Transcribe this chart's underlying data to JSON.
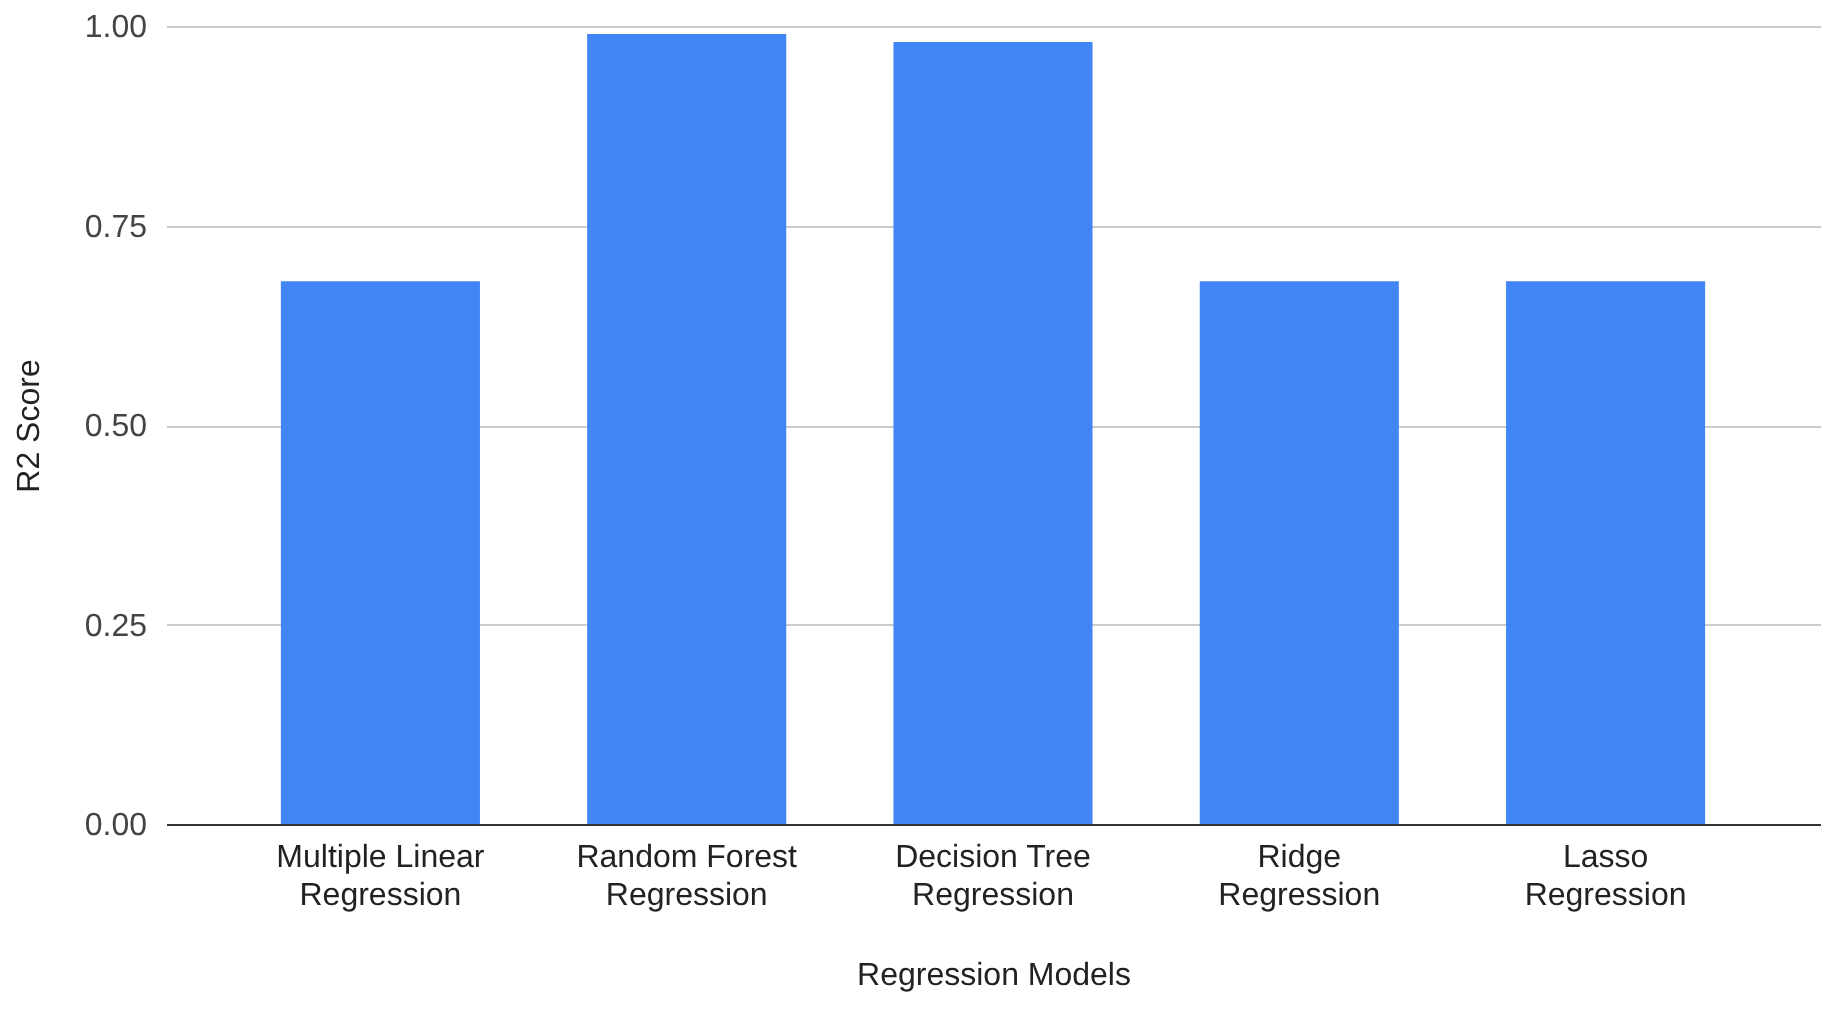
{
  "chart_data": {
    "type": "bar",
    "xlabel": "Regression Models",
    "ylabel": "R2 Score",
    "categories": [
      "Multiple Linear Regression",
      "Random Forest Regression",
      "Decision Tree Regression",
      "Ridge Regression",
      "Lasso Regression"
    ],
    "values": [
      0.68,
      0.99,
      0.98,
      0.68,
      0.68
    ],
    "color": "#4285f4",
    "ylim": [
      0,
      1
    ],
    "yticks": [
      {
        "value": 0,
        "label": "0.00"
      },
      {
        "value": 0.25,
        "label": "0.25"
      },
      {
        "value": 0.5,
        "label": "0.50"
      },
      {
        "value": 0.75,
        "label": "0.75"
      },
      {
        "value": 1,
        "label": "1.00"
      }
    ],
    "grid": "y"
  }
}
